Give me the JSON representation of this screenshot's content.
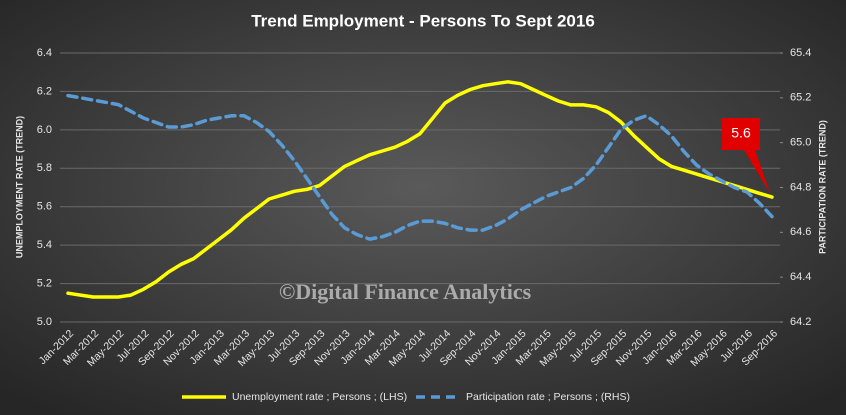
{
  "chart_data": {
    "type": "line",
    "title": "Trend Employment  - Persons To Sept 2016",
    "ylabel": "UNEMPLOYMENT RATE (TREND)",
    "y2label": "PARTICIPATION RATE (TREND)",
    "watermark": "©Digital Finance Analytics",
    "annotation": {
      "text": "5.6"
    },
    "categories": [
      "Jan-2012",
      null,
      "Mar-2012",
      null,
      "May-2012",
      null,
      "Jul-2012",
      null,
      "Sep-2012",
      null,
      "Nov-2012",
      null,
      "Jan-2013",
      null,
      "Mar-2013",
      null,
      "May-2013",
      null,
      "Jul-2013",
      null,
      "Sep-2013",
      null,
      "Nov-2013",
      null,
      "Jan-2014",
      null,
      "Mar-2014",
      null,
      "May-2014",
      null,
      "Jul-2014",
      null,
      "Sep-2014",
      null,
      "Nov-2014",
      null,
      "Jan-2015",
      null,
      "Mar-2015",
      null,
      "May-2015",
      null,
      "Jul-2015",
      null,
      "Sep-2015",
      null,
      "Nov-2015",
      null,
      "Jan-2016",
      null,
      "Mar-2016",
      null,
      "May-2016",
      null,
      "Jul-2016",
      null,
      "Sep-2016"
    ],
    "series": [
      {
        "name": "Unemployment rate ;  Persons ; (LHS)",
        "color": "#ffff00",
        "dashed": false,
        "values": [
          5.15,
          5.14,
          5.13,
          5.13,
          5.13,
          5.14,
          5.17,
          5.21,
          5.26,
          5.3,
          5.33,
          5.38,
          5.43,
          5.48,
          5.54,
          5.59,
          5.64,
          5.66,
          5.68,
          5.69,
          5.71,
          5.76,
          5.81,
          5.84,
          5.87,
          5.89,
          5.91,
          5.94,
          5.98,
          6.06,
          6.14,
          6.18,
          6.21,
          6.23,
          6.24,
          6.25,
          6.24,
          6.21,
          6.18,
          6.15,
          6.13,
          6.13,
          6.12,
          6.09,
          6.04,
          5.97,
          5.91,
          5.85,
          5.81,
          5.79,
          5.77,
          5.75,
          5.73,
          5.71,
          5.69,
          5.67,
          5.65
        ]
      },
      {
        "name": "Participation rate ;  Persons ; (RHS)",
        "color": "#5b9bd5",
        "dashed": true,
        "axis": "y2",
        "values": [
          65.21,
          65.2,
          65.19,
          65.18,
          65.17,
          65.14,
          65.11,
          65.09,
          65.07,
          65.07,
          65.08,
          65.1,
          65.11,
          65.12,
          65.12,
          65.09,
          65.05,
          64.99,
          64.92,
          64.84,
          64.76,
          64.68,
          64.62,
          64.59,
          64.57,
          64.58,
          64.6,
          64.63,
          64.65,
          64.65,
          64.64,
          64.62,
          64.61,
          64.61,
          64.63,
          64.66,
          64.7,
          64.73,
          64.76,
          64.78,
          64.8,
          64.84,
          64.9,
          64.98,
          65.06,
          65.1,
          65.12,
          65.08,
          65.03,
          64.96,
          64.9,
          64.86,
          64.83,
          64.8,
          64.78,
          64.73,
          64.67
        ]
      }
    ],
    "ylim": [
      5.0,
      6.4
    ],
    "yticks": [
      {
        "value": 5.0,
        "label": "5.0"
      },
      5.2,
      5.4,
      5.6,
      5.8,
      {
        "value": 6.0,
        "label": "6.0"
      },
      6.2,
      6.4
    ],
    "y2lim": [
      64.2,
      65.4
    ],
    "y2ticks": [
      64.2,
      64.4,
      64.6,
      64.8,
      {
        "value": 65.0,
        "label": "65.0"
      },
      65.2,
      65.4
    ],
    "grid": true
  }
}
